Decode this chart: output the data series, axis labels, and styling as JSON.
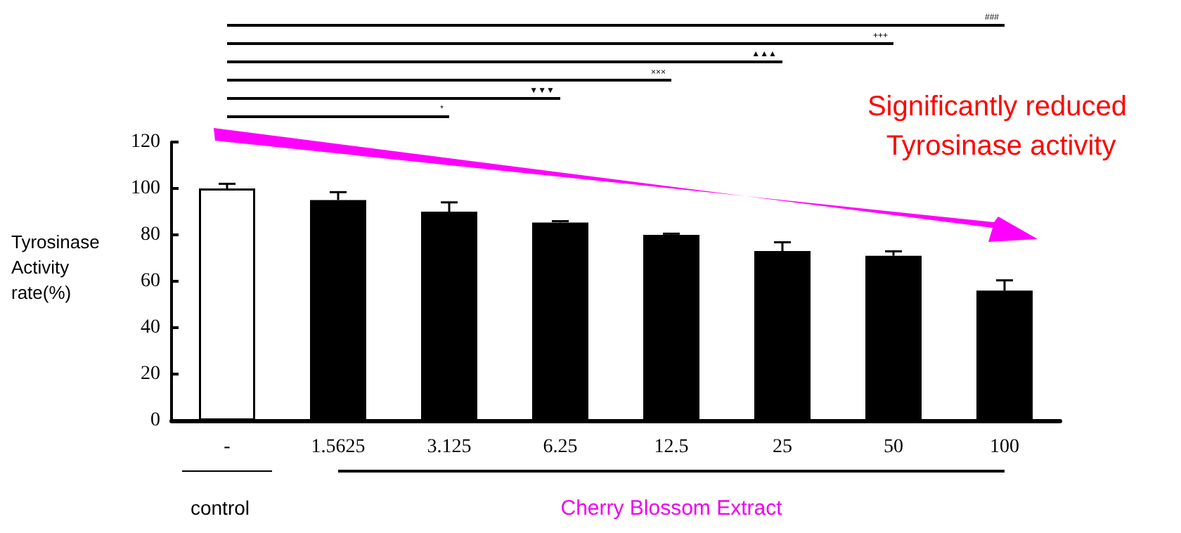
{
  "chart_data": {
    "type": "bar",
    "ylabel": "Tyrosinase Activity rate(%)",
    "categories": [
      "-",
      "1.5625",
      "3.125",
      "6.25",
      "12.5",
      "25",
      "50",
      "100"
    ],
    "values": [
      100,
      95,
      90,
      85.3,
      80,
      73,
      71,
      56
    ],
    "colors": [
      "#ffffff",
      "#000000",
      "#000000",
      "#000000",
      "#000000",
      "#000000",
      "#000000",
      "#000000"
    ],
    "errors": [
      [
        100,
        102
      ],
      [
        95,
        98.4
      ],
      [
        90,
        94
      ],
      [
        85.3,
        85.9
      ],
      [
        80,
        80.5
      ],
      [
        73,
        76.8
      ],
      [
        71,
        72.9
      ],
      [
        56,
        60.4
      ]
    ],
    "ylim": [
      0,
      120
    ],
    "yticks": [
      0,
      20,
      40,
      60,
      80,
      100,
      120
    ],
    "grid": false,
    "annotations": [
      "###",
      "+++",
      "▲▲▲",
      "×××",
      "▼▼▼",
      "*",
      "Significantly reduced Tyrosinase activity",
      "control",
      "Cherry Blossom Extract"
    ]
  }
}
